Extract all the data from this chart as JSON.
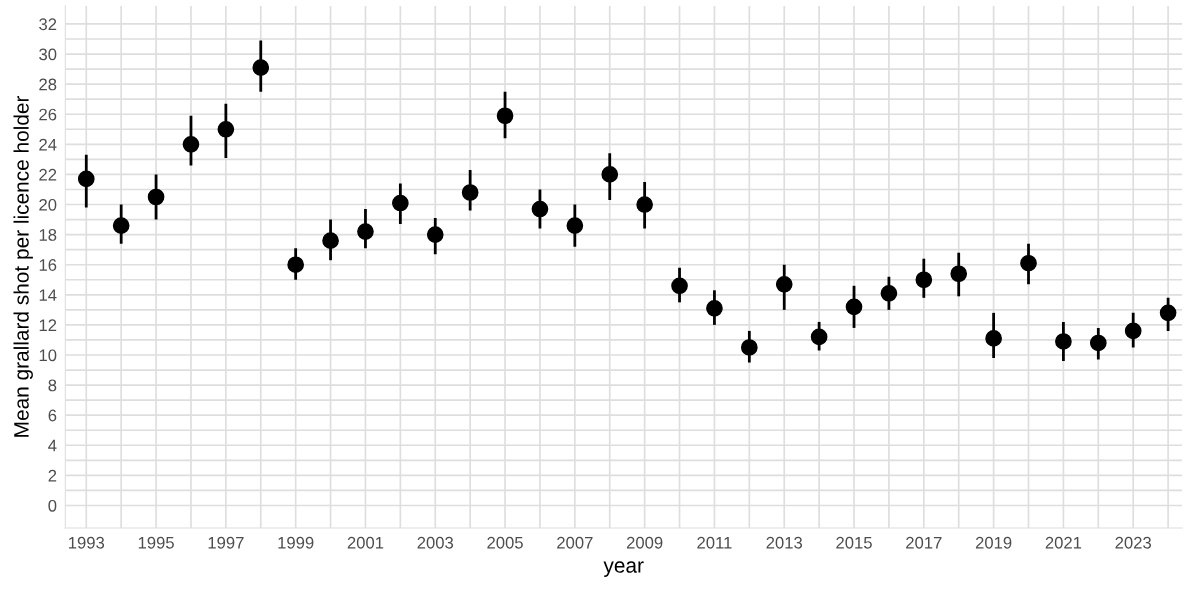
{
  "chart_data": {
    "type": "scatter",
    "xlabel": "year",
    "ylabel": "Mean grallard shot per licence holder",
    "x": [
      1993,
      1994,
      1995,
      1996,
      1997,
      1998,
      1999,
      2000,
      2001,
      2002,
      2003,
      2004,
      2005,
      2006,
      2007,
      2008,
      2009,
      2010,
      2011,
      2012,
      2013,
      2014,
      2015,
      2016,
      2017,
      2018,
      2019,
      2020,
      2021,
      2022,
      2023,
      2024
    ],
    "series": [
      {
        "color": "#000000",
        "values": [
          21.7,
          18.6,
          20.5,
          24.0,
          25.0,
          29.1,
          16.0,
          17.6,
          18.2,
          20.1,
          18.0,
          20.8,
          25.9,
          19.7,
          18.6,
          22.0,
          20.0,
          14.6,
          13.1,
          10.5,
          14.7,
          11.2,
          13.2,
          14.1,
          15.0,
          15.4,
          11.1,
          16.1,
          10.9,
          10.8,
          11.6,
          12.8
        ],
        "errors": [
          [
            19.8,
            23.3
          ],
          [
            17.4,
            20.0
          ],
          [
            19.0,
            22.0
          ],
          [
            22.6,
            25.9
          ],
          [
            23.1,
            26.7
          ],
          [
            27.5,
            30.9
          ],
          [
            15.0,
            17.1
          ],
          [
            16.3,
            19.0
          ],
          [
            17.1,
            19.7
          ],
          [
            18.7,
            21.4
          ],
          [
            16.7,
            19.1
          ],
          [
            19.6,
            22.3
          ],
          [
            24.4,
            27.5
          ],
          [
            18.4,
            21.0
          ],
          [
            17.2,
            20.0
          ],
          [
            20.3,
            23.4
          ],
          [
            18.4,
            21.5
          ],
          [
            13.5,
            15.8
          ],
          [
            12.0,
            14.3
          ],
          [
            9.5,
            11.6
          ],
          [
            13.0,
            16.0
          ],
          [
            10.3,
            12.2
          ],
          [
            11.8,
            14.6
          ],
          [
            13.0,
            15.2
          ],
          [
            13.8,
            16.4
          ],
          [
            13.9,
            16.8
          ],
          [
            9.8,
            12.8
          ],
          [
            14.7,
            17.4
          ],
          [
            9.6,
            12.2
          ],
          [
            9.7,
            11.8
          ],
          [
            10.5,
            12.8
          ],
          [
            11.6,
            13.8
          ]
        ]
      }
    ],
    "xlim": [
      1992.4,
      2024.4
    ],
    "xticks": [
      1993,
      {
        "value": 1994,
        "label": null
      },
      1995,
      {
        "value": 1996,
        "label": null
      },
      1997,
      {
        "value": 1998,
        "label": null
      },
      1999,
      {
        "value": 2000,
        "label": null
      },
      2001,
      {
        "value": 2002,
        "label": null
      },
      2003,
      {
        "value": 2004,
        "label": null
      },
      2005,
      {
        "value": 2006,
        "label": null
      },
      2007,
      {
        "value": 2008,
        "label": null
      },
      2009,
      {
        "value": 2010,
        "label": null
      },
      2011,
      {
        "value": 2012,
        "label": null
      },
      2013,
      {
        "value": 2014,
        "label": null
      },
      2015,
      {
        "value": 2016,
        "label": null
      },
      2017,
      {
        "value": 2018,
        "label": null
      },
      2019,
      {
        "value": 2020,
        "label": null
      },
      2021,
      {
        "value": 2022,
        "label": null
      },
      2023,
      {
        "value": 2024,
        "label": null
      }
    ],
    "ylim": [
      -1.5,
      33.2
    ],
    "yticks": [
      0,
      {
        "value": 1,
        "label": null
      },
      2,
      {
        "value": 3,
        "label": null
      },
      4,
      {
        "value": 5,
        "label": null
      },
      6,
      {
        "value": 7,
        "label": null
      },
      8,
      {
        "value": 9,
        "label": null
      },
      10,
      {
        "value": 11,
        "label": null
      },
      12,
      {
        "value": 13,
        "label": null
      },
      14,
      {
        "value": 15,
        "label": null
      },
      16,
      {
        "value": 17,
        "label": null
      },
      18,
      {
        "value": 19,
        "label": null
      },
      20,
      {
        "value": 21,
        "label": null
      },
      22,
      {
        "value": 23,
        "label": null
      },
      24,
      {
        "value": 25,
        "label": null
      },
      26,
      {
        "value": 27,
        "label": null
      },
      28,
      {
        "value": 29,
        "label": null
      },
      30,
      {
        "value": 31,
        "label": null
      },
      32
    ],
    "grid": true,
    "marker": "circle"
  }
}
